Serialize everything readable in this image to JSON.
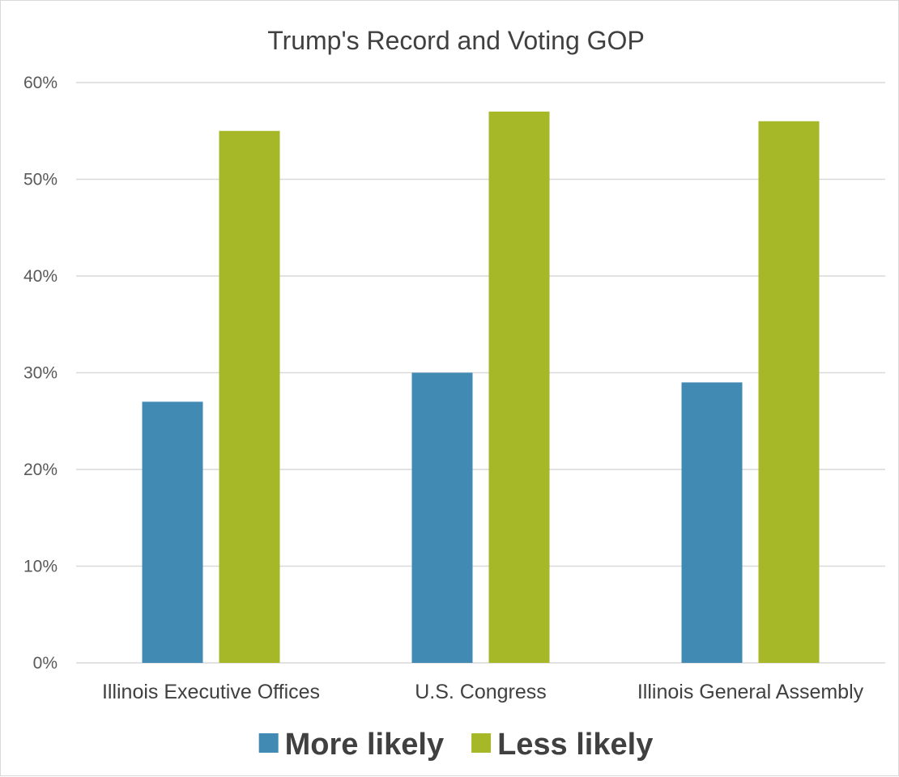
{
  "chart_data": {
    "type": "bar",
    "title": "Trump's Record and Voting GOP",
    "categories": [
      "Illinois Executive Offices",
      "U.S. Congress",
      "Illinois General Assembly"
    ],
    "series": [
      {
        "name": "More likely",
        "values": [
          0.27,
          0.3,
          0.29
        ],
        "color": "#418ab3"
      },
      {
        "name": "Less likely",
        "values": [
          0.55,
          0.57,
          0.56
        ],
        "color": "#a6b727"
      }
    ],
    "ylim": [
      0,
      0.6
    ],
    "yticks": [
      "0%",
      "10%",
      "20%",
      "30%",
      "40%",
      "50%",
      "60%"
    ],
    "xlabel": "",
    "ylabel": "",
    "grid": true,
    "legend_position": "bottom"
  }
}
